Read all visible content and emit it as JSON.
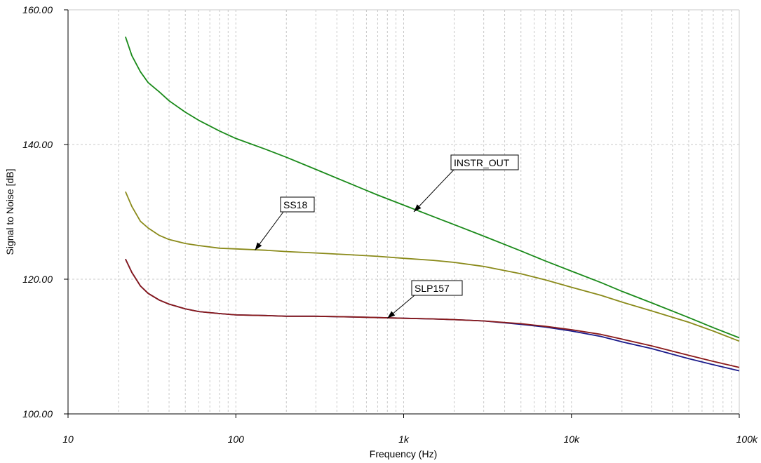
{
  "chart_data": {
    "type": "line",
    "title": "",
    "xlabel": "Frequency (Hz)",
    "ylabel": "Signal to Noise [dB]",
    "xscale": "log",
    "xlim": [
      10,
      100000
    ],
    "ylim": [
      100,
      160
    ],
    "grid": true,
    "x_ticks": [
      {
        "value": 10,
        "label": "10"
      },
      {
        "value": 100,
        "label": "100"
      },
      {
        "value": 1000,
        "label": "1k"
      },
      {
        "value": 10000,
        "label": "10k"
      },
      {
        "value": 100000,
        "label": "100k"
      }
    ],
    "y_ticks": [
      {
        "value": 100,
        "label": "100.00"
      },
      {
        "value": 120,
        "label": "120.00"
      },
      {
        "value": 140,
        "label": "140.00"
      },
      {
        "value": 160,
        "label": "160.00"
      }
    ],
    "series": [
      {
        "color": "#1a8a1a",
        "x": [
          22,
          24,
          27,
          30,
          35,
          40,
          50,
          60,
          80,
          100,
          150,
          200,
          300,
          500,
          700,
          1000,
          1500,
          2000,
          3000,
          5000,
          7000,
          10000,
          15000,
          20000,
          30000,
          50000,
          70000,
          100000
        ],
        "y": [
          156.0,
          153.2,
          150.8,
          149.2,
          147.8,
          146.5,
          144.8,
          143.6,
          142.0,
          140.9,
          139.3,
          138.1,
          136.3,
          134.0,
          132.5,
          131.0,
          129.3,
          128.1,
          126.4,
          124.2,
          122.7,
          121.2,
          119.5,
          118.2,
          116.5,
          114.3,
          112.8,
          111.3
        ]
      },
      {
        "color": "#8a8a1a",
        "x": [
          22,
          24,
          27,
          30,
          35,
          40,
          50,
          60,
          80,
          100,
          150,
          200,
          300,
          500,
          700,
          1000,
          1500,
          2000,
          3000,
          5000,
          7000,
          10000,
          15000,
          20000,
          30000,
          50000,
          70000,
          100000
        ],
        "y": [
          133.0,
          130.8,
          128.6,
          127.6,
          126.5,
          125.9,
          125.3,
          125.0,
          124.6,
          124.5,
          124.3,
          124.1,
          123.9,
          123.6,
          123.4,
          123.1,
          122.8,
          122.5,
          121.9,
          120.8,
          119.9,
          118.8,
          117.6,
          116.6,
          115.3,
          113.6,
          112.3,
          110.8
        ]
      },
      {
        "color": "#1a1a8a",
        "x": [
          22,
          24,
          27,
          30,
          35,
          40,
          50,
          60,
          80,
          100,
          150,
          200,
          300,
          500,
          700,
          1000,
          1500,
          2000,
          3000,
          5000,
          7000,
          10000,
          15000,
          20000,
          30000,
          50000,
          70000,
          100000
        ],
        "y": [
          123.0,
          121.0,
          119.0,
          117.9,
          116.9,
          116.3,
          115.6,
          115.2,
          114.9,
          114.7,
          114.6,
          114.5,
          114.5,
          114.4,
          114.3,
          114.2,
          114.1,
          114.0,
          113.8,
          113.3,
          112.9,
          112.3,
          111.5,
          110.7,
          109.7,
          108.2,
          107.3,
          106.4
        ]
      },
      {
        "color": "#8a1a1a",
        "x": [
          22,
          24,
          27,
          30,
          35,
          40,
          50,
          60,
          80,
          100,
          150,
          200,
          300,
          500,
          700,
          1000,
          1500,
          2000,
          3000,
          5000,
          7000,
          10000,
          15000,
          20000,
          30000,
          50000,
          70000,
          100000
        ],
        "y": [
          123.0,
          121.0,
          119.0,
          117.9,
          116.9,
          116.3,
          115.6,
          115.2,
          114.9,
          114.7,
          114.6,
          114.5,
          114.5,
          114.4,
          114.3,
          114.2,
          114.1,
          114.0,
          113.8,
          113.4,
          113.0,
          112.5,
          111.8,
          111.1,
          110.1,
          108.7,
          107.8,
          106.9
        ]
      }
    ],
    "annotations": [
      {
        "text": "INSTR_OUT",
        "point_x": 1150,
        "point_y": 130.0
      },
      {
        "text": "SS18",
        "point_x": 130,
        "point_y": 124.3
      },
      {
        "text": "SLP157",
        "point_x": 800,
        "point_y": 114.2
      }
    ]
  }
}
